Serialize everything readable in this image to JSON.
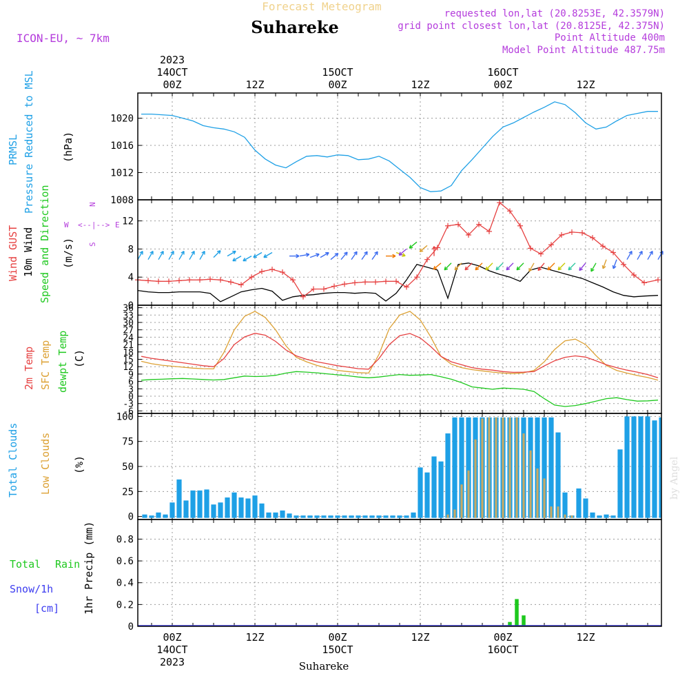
{
  "header": {
    "app_title": "Forecast Meteogram",
    "location": "Suhareke",
    "model": "ICON-EU, ~ 7km",
    "requested": "requested lon,lat (20.8253E, 42.3579N)",
    "grid_point": "grid point closest lon,lat (20.8125E, 42.375N)",
    "point_altitude": "Point Altitude 400m",
    "model_altitude": "Model Point Altitude 487.75m",
    "footer_location": "Suhareke",
    "watermark": "by Angel"
  },
  "time_axis": {
    "year": "2023",
    "days": [
      "14OCT",
      "15OCT",
      "16OCT"
    ],
    "hour_labels": [
      "00Z",
      "12Z",
      "00Z",
      "12Z",
      "00Z",
      "12Z"
    ],
    "hour_values": [
      0,
      12,
      24,
      36,
      48,
      60
    ],
    "range": [
      -5,
      71
    ]
  },
  "colors": {
    "pressure": "#1ea0e6",
    "gust": "#e64040",
    "wind": "#000000",
    "temp": "#e64040",
    "sfc_temp": "#dca032",
    "dewpt": "#1ec81e",
    "total_clouds": "#1ea0e6",
    "low_clouds": "#c8aa64",
    "rain": "#1ec81e",
    "snow": "#3c3cf0",
    "direction_label": "#b43cdc"
  },
  "panels": {
    "pressure": {
      "labels": [
        "PRMSL",
        "Pressure Reduced to MSL",
        "(hPa)"
      ],
      "ticks": [
        "1008",
        "1012",
        "1016",
        "1020"
      ]
    },
    "wind": {
      "labels": [
        "Wind GUST",
        "10m Wind",
        "Speed and Direction",
        "(m/s)"
      ],
      "ticks": [
        "0",
        "4",
        "8",
        "12"
      ],
      "compass": {
        "n": "N",
        "s": "S",
        "e": "E",
        "w": "W",
        "center": "<--|-->"
      }
    },
    "temp": {
      "labels": [
        "2m Temp",
        "SFC Temp",
        "dewpt Temp",
        "(C)"
      ],
      "ticks": [
        "-6",
        "-3",
        "0",
        "3",
        "6",
        "9",
        "12",
        "15",
        "18",
        "21",
        "24",
        "27",
        "30",
        "33",
        "36"
      ]
    },
    "clouds": {
      "labels": [
        "Total Clouds",
        "Low Clouds",
        "(%)"
      ],
      "ticks": [
        "0",
        "25",
        "50",
        "75",
        "100"
      ]
    },
    "precip": {
      "labels": [
        "Total",
        "Rain",
        "Snow/1h",
        "[cm]",
        "1hr Precip (mm)"
      ],
      "ticks": [
        "0",
        "0.2",
        "0.4",
        "0.6",
        "0.8"
      ]
    }
  },
  "chart_data": [
    {
      "type": "line",
      "title": "PRMSL Pressure Reduced to MSL",
      "ylabel": "hPa",
      "ylim": [
        1008,
        1023.7
      ],
      "x": [
        -4.5,
        -3,
        -1.5,
        0,
        1.5,
        3,
        4.5,
        6,
        7.5,
        9,
        10.5,
        12,
        13.5,
        15,
        16.5,
        18,
        19.5,
        21,
        22.5,
        24,
        25.5,
        27,
        28.5,
        30,
        31.5,
        33,
        34.5,
        36,
        37.5,
        39,
        40.5,
        42,
        43.5,
        45,
        46.5,
        48,
        49.5,
        51,
        52.5,
        54,
        55.5,
        57,
        58.5,
        60,
        61.5,
        63,
        64.5,
        66,
        67.5,
        69,
        70.5
      ],
      "series": [
        {
          "name": "PRMSL",
          "values": [
            1020.6,
            1020.6,
            1020.5,
            1020.4,
            1020.0,
            1019.6,
            1018.9,
            1018.6,
            1018.4,
            1018.0,
            1017.2,
            1015.3,
            1014.0,
            1013.1,
            1012.7,
            1013.6,
            1014.4,
            1014.5,
            1014.3,
            1014.6,
            1014.5,
            1013.9,
            1014.0,
            1014.4,
            1013.7,
            1012.5,
            1011.3,
            1009.8,
            1009.2,
            1009.3,
            1010.1,
            1012.3,
            1013.9,
            1015.6,
            1017.3,
            1018.7,
            1019.3,
            1020.1,
            1020.9,
            1021.6,
            1022.4,
            1022.0,
            1020.8,
            1019.3,
            1018.4,
            1018.7,
            1019.6,
            1020.4,
            1020.7,
            1021.0,
            1021.0
          ]
        }
      ]
    },
    {
      "type": "line",
      "title": "Wind GUST / 10m Wind Speed",
      "ylabel": "m/s",
      "ylim": [
        0,
        15
      ],
      "x": [
        -5,
        -3.5,
        -2,
        -0.5,
        1,
        2.5,
        4,
        5.5,
        7,
        8.5,
        10,
        11.5,
        13,
        14.5,
        16,
        17.5,
        19,
        20.5,
        22,
        23.5,
        25,
        26.5,
        28,
        29.5,
        31,
        32.5,
        34,
        35.5,
        37,
        38.5,
        40,
        41.5,
        43,
        44.5,
        46,
        47.5,
        49,
        50.5,
        52,
        53.5,
        55,
        56.5,
        58,
        59.5,
        61,
        62.5,
        64,
        65.5,
        67,
        68.5,
        70.5
      ],
      "series": [
        {
          "name": "Wind GUST",
          "values": [
            3.6,
            3.5,
            3.4,
            3.4,
            3.5,
            3.6,
            3.6,
            3.7,
            3.6,
            3.3,
            2.9,
            4.0,
            4.8,
            5.1,
            4.7,
            3.6,
            1.2,
            2.3,
            2.3,
            2.7,
            3.0,
            3.2,
            3.3,
            3.3,
            3.4,
            3.4,
            2.6,
            4.0,
            6.5,
            8.2,
            11.3,
            11.5,
            10.0,
            11.5,
            10.5,
            14.6,
            13.4,
            11.3,
            8.1,
            7.3,
            8.6,
            10.0,
            10.4,
            10.3,
            9.6,
            8.4,
            7.5,
            5.8,
            4.3,
            3.2,
            3.6
          ]
        },
        {
          "name": "10m Wind",
          "values": [
            2.1,
            1.9,
            1.8,
            1.8,
            1.9,
            1.9,
            1.9,
            1.7,
            0.5,
            1.2,
            1.9,
            2.2,
            2.4,
            2.0,
            0.7,
            1.2,
            1.4,
            1.5,
            1.7,
            1.8,
            1.8,
            1.7,
            1.8,
            1.7,
            0.6,
            1.7,
            3.6,
            5.8,
            5.4,
            5.0,
            1.0,
            5.8,
            6.0,
            5.6,
            4.9,
            4.4,
            4.0,
            3.4,
            5.0,
            5.4,
            5.0,
            4.6,
            4.2,
            3.8,
            3.2,
            2.6,
            1.9,
            1.4,
            1.2,
            1.3,
            1.4
          ]
        }
      ]
    },
    {
      "type": "line",
      "title": "2m Temp / SFC Temp / dewpt Temp",
      "ylabel": "C",
      "ylim": [
        -7,
        37
      ],
      "x": [
        -4.5,
        -3,
        -1.5,
        0,
        1.5,
        3,
        4.5,
        6,
        7.5,
        9,
        10.5,
        12,
        13.5,
        15,
        16.5,
        18,
        19.5,
        21,
        22.5,
        24,
        25.5,
        27,
        28.5,
        30,
        31.5,
        33,
        34.5,
        36,
        37.5,
        39,
        40.5,
        42,
        43.5,
        45,
        46.5,
        48,
        49.5,
        51,
        52.5,
        54,
        55.5,
        57,
        58.5,
        60,
        61.5,
        63,
        64.5,
        66,
        67.5,
        69,
        70.5
      ],
      "series": [
        {
          "name": "2m Temp",
          "values": [
            16.2,
            15.4,
            14.8,
            14.2,
            13.6,
            13.0,
            12.4,
            12.0,
            15.3,
            21.0,
            24.1,
            25.6,
            24.8,
            22.3,
            18.8,
            16.4,
            15.0,
            14.0,
            13.2,
            12.4,
            11.8,
            11.2,
            11.0,
            15.3,
            21.0,
            24.6,
            25.5,
            23.7,
            20.2,
            16.2,
            14.0,
            12.8,
            11.6,
            11.0,
            10.6,
            10.0,
            9.7,
            9.8,
            10.0,
            12.3,
            14.4,
            15.8,
            16.4,
            15.9,
            14.4,
            12.8,
            11.6,
            10.6,
            9.8,
            8.8,
            7.5
          ]
        },
        {
          "name": "SFC Temp",
          "values": [
            14.2,
            13.2,
            12.6,
            12.2,
            11.8,
            11.4,
            11.2,
            11.1,
            17.8,
            27.0,
            32.5,
            34.5,
            32.0,
            27.0,
            20.5,
            15.8,
            14.0,
            12.5,
            11.4,
            10.5,
            10.0,
            9.6,
            9.4,
            17.0,
            27.5,
            33.0,
            34.5,
            31.0,
            24.2,
            16.2,
            13.0,
            11.6,
            10.8,
            10.3,
            9.8,
            9.4,
            9.2,
            9.5,
            10.5,
            14.0,
            19.0,
            22.5,
            23.2,
            21.0,
            16.5,
            12.5,
            10.5,
            9.4,
            8.4,
            7.6,
            6.5
          ]
        },
        {
          "name": "dewpt Temp",
          "values": [
            6.5,
            6.8,
            6.9,
            7.1,
            7.2,
            7.0,
            6.8,
            6.6,
            6.8,
            7.5,
            8.2,
            8.0,
            8.1,
            8.5,
            9.4,
            10.0,
            9.8,
            9.5,
            9.1,
            8.7,
            8.3,
            7.8,
            7.5,
            7.8,
            8.3,
            8.8,
            8.5,
            8.6,
            8.8,
            7.9,
            6.9,
            5.5,
            3.8,
            3.3,
            2.8,
            3.3,
            3.1,
            2.8,
            1.9,
            -1.0,
            -3.6,
            -4.2,
            -3.8,
            -3.0,
            -2.0,
            -1.0,
            -0.6,
            -1.4,
            -2.0,
            -1.9,
            -1.6
          ]
        }
      ]
    },
    {
      "type": "bar",
      "title": "Total Clouds / Low Clouds",
      "ylabel": "%",
      "ylim": [
        -3,
        103
      ],
      "x": [
        -4,
        -3,
        -2,
        -1,
        0,
        1,
        2,
        3,
        4,
        5,
        6,
        7,
        8,
        9,
        10,
        11,
        12,
        13,
        14,
        15,
        16,
        17,
        18,
        19,
        20,
        21,
        22,
        23,
        24,
        25,
        26,
        27,
        28,
        29,
        30,
        31,
        32,
        33,
        34,
        35,
        36,
        37,
        38,
        39,
        40,
        41,
        42,
        43,
        44,
        45,
        46,
        47,
        48,
        49,
        50,
        51,
        52,
        53,
        54,
        55,
        56,
        57,
        58,
        59,
        60,
        61,
        62,
        63,
        64,
        65,
        66,
        67,
        68,
        69,
        70,
        71
      ],
      "series": [
        {
          "name": "Total Clouds",
          "values": [
            2,
            1,
            4,
            2,
            14,
            37,
            16,
            26,
            26,
            27,
            12,
            14,
            19,
            24,
            19,
            18,
            21,
            13,
            4,
            4,
            6,
            3,
            1,
            1,
            1,
            1,
            1,
            1,
            1,
            1,
            1,
            1,
            1,
            1,
            1,
            1,
            1,
            1,
            1,
            4,
            49,
            44,
            60,
            55,
            83,
            99,
            99,
            99,
            99,
            99,
            99,
            99,
            99,
            99,
            99,
            99,
            99,
            99,
            99,
            99,
            84,
            24,
            1,
            28,
            18,
            4,
            1,
            2,
            1,
            67,
            100,
            100,
            100,
            100,
            96,
            99
          ]
        },
        {
          "name": "Low Clouds",
          "values": [
            0,
            0,
            0,
            0,
            0,
            0,
            0,
            0,
            0,
            0,
            0,
            0,
            0,
            0,
            0,
            0,
            0,
            0,
            0,
            0,
            0,
            0,
            0,
            0,
            0,
            0,
            0,
            0,
            0,
            0,
            0,
            0,
            0,
            0,
            0,
            0,
            0,
            0,
            0,
            0,
            0,
            0,
            0,
            0,
            2,
            7,
            32,
            46,
            77,
            98,
            99,
            99,
            99,
            99,
            99,
            83,
            66,
            48,
            38,
            10,
            10,
            2,
            1,
            0,
            0,
            0,
            0,
            0,
            0,
            0,
            0,
            0,
            0,
            0,
            0,
            0
          ]
        }
      ]
    },
    {
      "type": "bar",
      "title": "1hr Precip (mm)",
      "ylabel": "1hr Precip (mm)",
      "ylim": [
        0,
        0.98
      ],
      "x": [
        49,
        50,
        51
      ],
      "series": [
        {
          "name": "Total Rain",
          "values": [
            0.04,
            0.25,
            0.1
          ]
        }
      ]
    }
  ],
  "wind_arrows": [
    {
      "x": -5,
      "dir": 30,
      "speed": 6.5
    },
    {
      "x": -3.5,
      "dir": 30,
      "speed": 6.5
    },
    {
      "x": -2,
      "dir": 30,
      "speed": 6.5
    },
    {
      "x": -0.5,
      "dir": 30,
      "speed": 6.5
    },
    {
      "x": 1,
      "dir": 30,
      "speed": 6.5
    },
    {
      "x": 2.5,
      "dir": 30,
      "speed": 6.5
    },
    {
      "x": 4,
      "dir": 30,
      "speed": 6.5
    },
    {
      "x": 6,
      "dir": 45,
      "speed": 6.8
    },
    {
      "x": 8,
      "dir": 60,
      "speed": 7
    },
    {
      "x": 10,
      "dir": 240,
      "speed": 7
    },
    {
      "x": 11.5,
      "dir": 240,
      "speed": 7
    },
    {
      "x": 13,
      "dir": 240,
      "speed": 7.5
    },
    {
      "x": 14.5,
      "dir": 240,
      "speed": 7.5
    },
    {
      "x": 17,
      "dir": 90,
      "speed": 7
    },
    {
      "x": 18.5,
      "dir": 80,
      "speed": 7
    },
    {
      "x": 20,
      "dir": 70,
      "speed": 6.8
    },
    {
      "x": 21.5,
      "dir": 60,
      "speed": 6.8
    },
    {
      "x": 23,
      "dir": 50,
      "speed": 6.5
    },
    {
      "x": 24.5,
      "dir": 40,
      "speed": 6.5
    },
    {
      "x": 26,
      "dir": 35,
      "speed": 6.5
    },
    {
      "x": 27.5,
      "dir": 35,
      "speed": 6.5
    },
    {
      "x": 29,
      "dir": 35,
      "speed": 6.5
    },
    {
      "x": 31,
      "dir": 90,
      "speed": 7
    },
    {
      "x": 32.5,
      "dir": 110,
      "speed": 7.5
    },
    {
      "x": 34,
      "dir": 230,
      "speed": 8
    },
    {
      "x": 35.5,
      "dir": 230,
      "speed": 9
    },
    {
      "x": 37,
      "dir": 230,
      "speed": 8.5
    },
    {
      "x": 38,
      "dir": 0,
      "speed": 7
    },
    {
      "x": 39,
      "dir": 230,
      "speed": 6
    },
    {
      "x": 40.5,
      "dir": 225,
      "speed": 6
    },
    {
      "x": 42,
      "dir": 225,
      "speed": 6
    },
    {
      "x": 43.5,
      "dir": 225,
      "speed": 6
    },
    {
      "x": 45,
      "dir": 225,
      "speed": 6
    },
    {
      "x": 46.5,
      "dir": 225,
      "speed": 6
    },
    {
      "x": 48,
      "dir": 225,
      "speed": 6
    },
    {
      "x": 49.5,
      "dir": 225,
      "speed": 6
    },
    {
      "x": 51,
      "dir": 225,
      "speed": 6
    },
    {
      "x": 52.5,
      "dir": 210,
      "speed": 6
    },
    {
      "x": 54,
      "dir": 220,
      "speed": 6
    },
    {
      "x": 55.5,
      "dir": 225,
      "speed": 6
    },
    {
      "x": 57,
      "dir": 225,
      "speed": 6
    },
    {
      "x": 58.5,
      "dir": 225,
      "speed": 6
    },
    {
      "x": 60,
      "dir": 220,
      "speed": 6
    },
    {
      "x": 61.5,
      "dir": 210,
      "speed": 6
    },
    {
      "x": 63,
      "dir": 200,
      "speed": 6.5
    },
    {
      "x": 64.5,
      "dir": 200,
      "speed": 6.5
    },
    {
      "x": 66,
      "dir": 30,
      "speed": 6.5
    },
    {
      "x": 67.5,
      "dir": 30,
      "speed": 6.5
    },
    {
      "x": 69,
      "dir": 30,
      "speed": 6.5
    },
    {
      "x": 70.5,
      "dir": 30,
      "speed": 6.5
    }
  ]
}
